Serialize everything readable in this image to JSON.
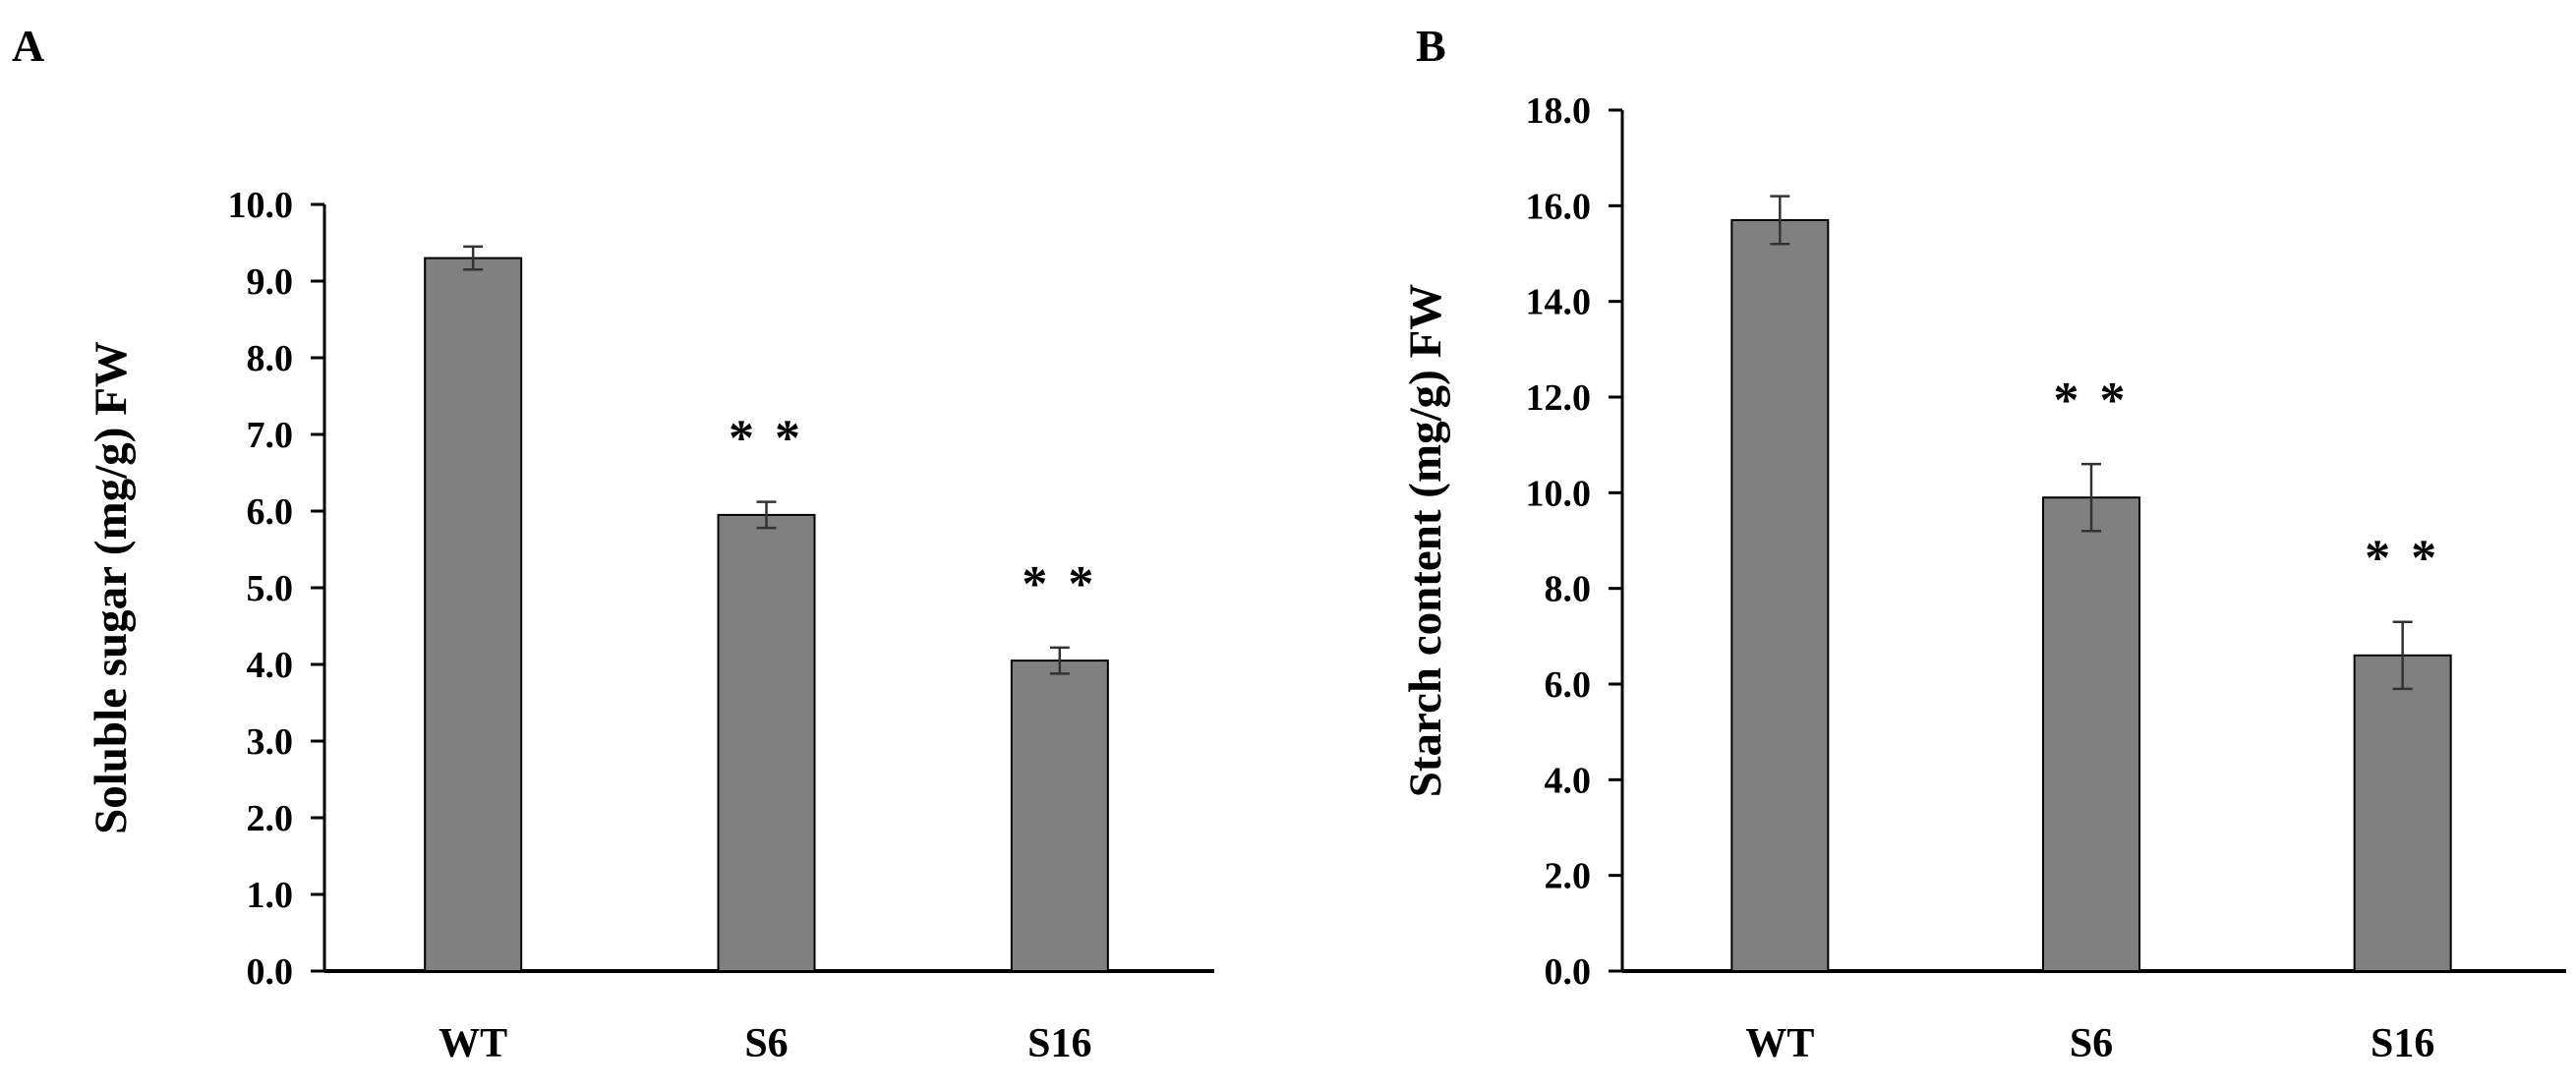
{
  "chart_data": [
    {
      "panel": "A",
      "type": "bar",
      "title": "",
      "xlabel": "",
      "ylabel": "Soluble sugar (mg/g) FW",
      "categories": [
        "WT",
        "S6",
        "S16"
      ],
      "values": [
        9.3,
        5.95,
        4.05
      ],
      "errors": [
        0.15,
        0.17,
        0.17
      ],
      "annotations": [
        "",
        "* *",
        "* *"
      ],
      "ylim": [
        0,
        10
      ],
      "yticks": [
        0,
        1,
        2,
        3,
        4,
        5,
        6,
        7,
        8,
        9,
        10
      ],
      "ytick_labels": [
        "0.0",
        "1.0",
        "2.0",
        "3.0",
        "4.0",
        "5.0",
        "6.0",
        "7.0",
        "8.0",
        "9.0",
        "10.0"
      ],
      "grid": false,
      "bar_color": "#808080"
    },
    {
      "panel": "B",
      "type": "bar",
      "title": "",
      "xlabel": "",
      "ylabel": "Starch content (mg/g) FW",
      "categories": [
        "WT",
        "S6",
        "S16"
      ],
      "values": [
        15.7,
        9.9,
        6.6
      ],
      "errors": [
        0.5,
        0.7,
        0.7
      ],
      "annotations": [
        "",
        "* *",
        "* *"
      ],
      "ylim": [
        0,
        18
      ],
      "yticks": [
        0,
        2,
        4,
        6,
        8,
        10,
        12,
        14,
        16,
        18
      ],
      "ytick_labels": [
        "0.0",
        "2.0",
        "4.0",
        "6.0",
        "8.0",
        "10.0",
        "12.0",
        "14.0",
        "16.0",
        "18.0"
      ],
      "grid": false,
      "bar_color": "#808080"
    }
  ]
}
